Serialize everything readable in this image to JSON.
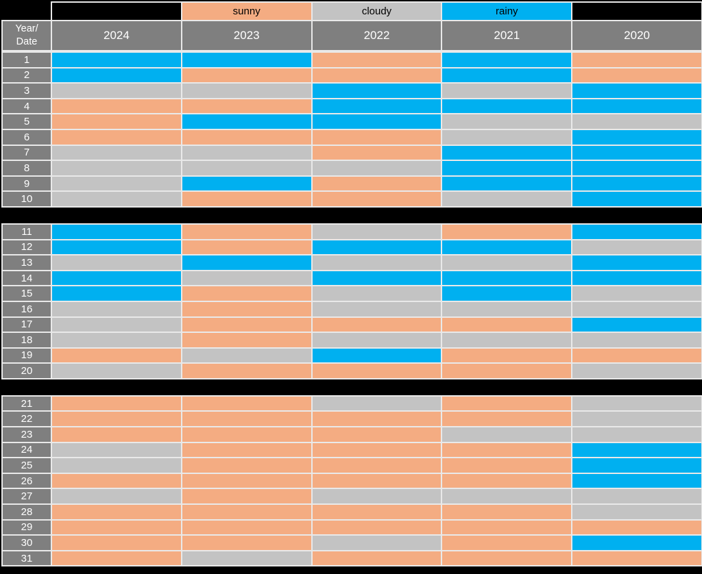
{
  "header": {
    "corner_line1": "Year/",
    "corner_line2": "Date",
    "years": [
      "2024",
      "2023",
      "2022",
      "2021",
      "2020"
    ]
  },
  "legend": {
    "items": [
      {
        "label": "sunny",
        "key": "sunny"
      },
      {
        "label": "cloudy",
        "key": "cloudy"
      },
      {
        "label": "rainy",
        "key": "rainy"
      }
    ]
  },
  "colors": {
    "sunny": "#F4AC82",
    "cloudy": "#C3C3C3",
    "rainy": "#00B0F0",
    "header_bg": "#7F7F7F",
    "grid_line": "#E9E9E9",
    "background": "#000000",
    "header_text": "#FFFFFF",
    "legend_text": "#000000"
  },
  "layout": {
    "sections": [
      [
        1,
        10
      ],
      [
        11,
        20
      ],
      [
        21,
        31
      ]
    ]
  },
  "chart_data": {
    "type": "heatmap",
    "title": "",
    "columns": [
      "2024",
      "2023",
      "2022",
      "2021",
      "2020"
    ],
    "row_labels": [
      "1",
      "2",
      "3",
      "4",
      "5",
      "6",
      "7",
      "8",
      "9",
      "10",
      "11",
      "12",
      "13",
      "14",
      "15",
      "16",
      "17",
      "18",
      "19",
      "20",
      "21",
      "22",
      "23",
      "24",
      "25",
      "26",
      "27",
      "28",
      "29",
      "30",
      "31"
    ],
    "legend_categories": [
      "sunny",
      "cloudy",
      "rainy"
    ],
    "values": [
      [
        "rainy",
        "rainy",
        "sunny",
        "rainy",
        "sunny"
      ],
      [
        "rainy",
        "sunny",
        "sunny",
        "rainy",
        "sunny"
      ],
      [
        "cloudy",
        "cloudy",
        "rainy",
        "cloudy",
        "rainy"
      ],
      [
        "sunny",
        "sunny",
        "rainy",
        "rainy",
        "rainy"
      ],
      [
        "sunny",
        "rainy",
        "rainy",
        "cloudy",
        "cloudy"
      ],
      [
        "sunny",
        "sunny",
        "sunny",
        "cloudy",
        "rainy"
      ],
      [
        "cloudy",
        "cloudy",
        "sunny",
        "rainy",
        "rainy"
      ],
      [
        "cloudy",
        "cloudy",
        "cloudy",
        "rainy",
        "rainy"
      ],
      [
        "cloudy",
        "rainy",
        "sunny",
        "rainy",
        "rainy"
      ],
      [
        "cloudy",
        "sunny",
        "sunny",
        "cloudy",
        "rainy"
      ],
      [
        "rainy",
        "sunny",
        "cloudy",
        "sunny",
        "rainy"
      ],
      [
        "rainy",
        "sunny",
        "rainy",
        "rainy",
        "cloudy"
      ],
      [
        "cloudy",
        "rainy",
        "cloudy",
        "cloudy",
        "rainy"
      ],
      [
        "rainy",
        "cloudy",
        "rainy",
        "rainy",
        "rainy"
      ],
      [
        "rainy",
        "sunny",
        "cloudy",
        "rainy",
        "cloudy"
      ],
      [
        "cloudy",
        "sunny",
        "cloudy",
        "cloudy",
        "cloudy"
      ],
      [
        "cloudy",
        "sunny",
        "sunny",
        "sunny",
        "rainy"
      ],
      [
        "cloudy",
        "sunny",
        "cloudy",
        "cloudy",
        "cloudy"
      ],
      [
        "sunny",
        "cloudy",
        "rainy",
        "sunny",
        "sunny"
      ],
      [
        "cloudy",
        "sunny",
        "sunny",
        "sunny",
        "cloudy"
      ],
      [
        "sunny",
        "sunny",
        "cloudy",
        "sunny",
        "cloudy"
      ],
      [
        "sunny",
        "sunny",
        "sunny",
        "sunny",
        "cloudy"
      ],
      [
        "sunny",
        "sunny",
        "sunny",
        "cloudy",
        "cloudy"
      ],
      [
        "cloudy",
        "sunny",
        "sunny",
        "sunny",
        "rainy"
      ],
      [
        "cloudy",
        "sunny",
        "sunny",
        "sunny",
        "rainy"
      ],
      [
        "sunny",
        "sunny",
        "sunny",
        "sunny",
        "rainy"
      ],
      [
        "cloudy",
        "sunny",
        "cloudy",
        "cloudy",
        "cloudy"
      ],
      [
        "sunny",
        "sunny",
        "sunny",
        "sunny",
        "cloudy"
      ],
      [
        "sunny",
        "sunny",
        "sunny",
        "sunny",
        "sunny"
      ],
      [
        "sunny",
        "sunny",
        "cloudy",
        "sunny",
        "rainy"
      ],
      [
        "sunny",
        "cloudy",
        "sunny",
        "sunny",
        "sunny"
      ]
    ]
  }
}
